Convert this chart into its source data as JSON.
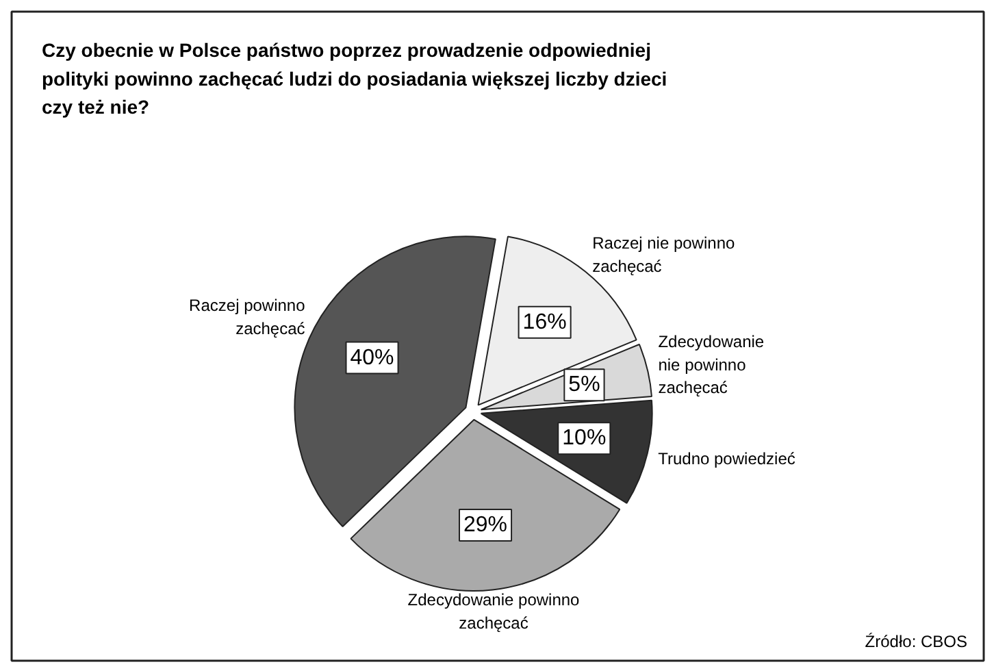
{
  "chart_data": {
    "type": "pie",
    "title": "Czy obecnie w Polsce państwo poprzez prowadzenie odpowiedniej\npolityki powinno zachęcać ludzi do posiadania większej liczby dzieci\nczy też nie?",
    "categories": [
      "Raczej powinno\nzachęcać",
      "Raczej nie powinno\nzachęcać",
      "Zdecydowanie\nnie powinno\nzachęcać",
      "Trudno powiedzieć",
      "Zdecydowanie powinno\nzachęcać"
    ],
    "values": [
      40,
      16,
      5,
      10,
      29
    ],
    "colors": [
      "#555555",
      "#eeeeee",
      "#d9d9d9",
      "#333333",
      "#aaaaaa"
    ],
    "value_labels": [
      "40%",
      "16%",
      "5%",
      "10%",
      "29%"
    ],
    "annotations": [
      "Źródło: CBOS"
    ]
  }
}
